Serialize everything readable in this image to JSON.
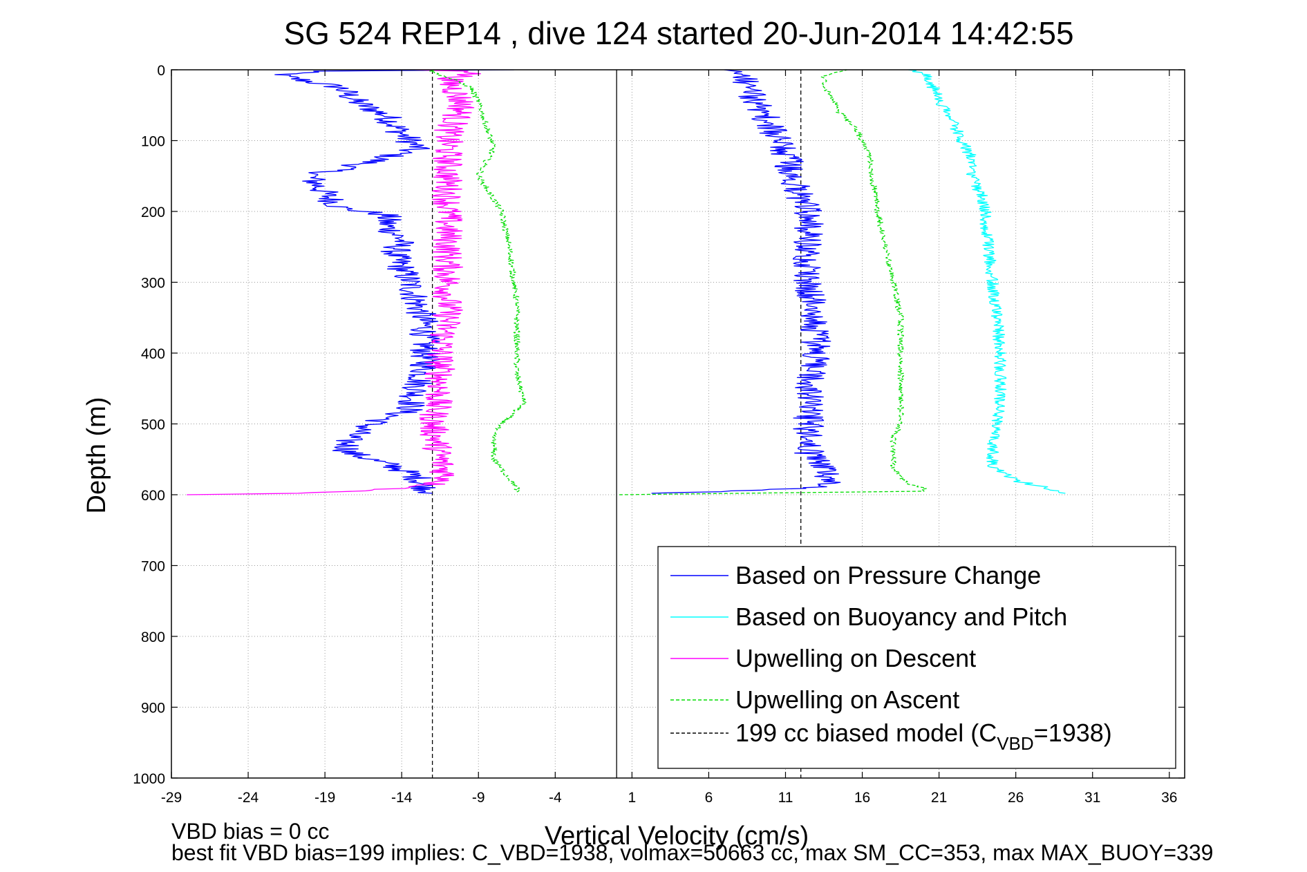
{
  "chart_data": {
    "type": "line",
    "title": "SG 524   REP14  , dive 124 started 20-Jun-2014 14:42:55",
    "xlabel": "Vertical Velocity (cm/s)",
    "ylabel": "Depth (m)",
    "xlim": [
      -29,
      37
    ],
    "ylim": [
      0,
      1000
    ],
    "y_reversed": true,
    "grid": true,
    "xticks": [
      -29,
      -24,
      -19,
      -14,
      -9,
      -4,
      1,
      6,
      11,
      16,
      21,
      26,
      31,
      36
    ],
    "yticks": [
      0,
      100,
      200,
      300,
      400,
      500,
      600,
      700,
      800,
      900,
      1000
    ],
    "legend_position": "bottom-right",
    "vertical_lines": [
      {
        "x": -12,
        "style": "dashed",
        "color": "#000000"
      },
      {
        "x": 0,
        "style": "solid",
        "color": "#000000"
      },
      {
        "x": 12,
        "style": "dashed",
        "color": "#000000"
      }
    ],
    "series": [
      {
        "name": "Based on Pressure Change",
        "color": "#0000ff",
        "style": "solid",
        "noise": 1.0,
        "descent": {
          "depth": [
            0,
            2,
            8,
            25,
            45,
            65,
            90,
            110,
            130,
            150,
            175,
            195,
            205,
            220,
            240,
            260,
            280,
            300,
            330,
            360,
            390,
            420,
            450,
            480,
            500,
            520,
            540,
            560,
            575,
            590,
            598
          ],
          "x": [
            -7,
            -20,
            -22,
            -18,
            -17,
            -15,
            -14,
            -13,
            -16,
            -20,
            -19,
            -18,
            -15,
            -15,
            -14,
            -14.5,
            -14,
            -13.5,
            -13,
            -12.5,
            -12.5,
            -12.5,
            -13,
            -13.5,
            -16,
            -17.5,
            -17.5,
            -14.5,
            -13,
            -12.5,
            -12
          ]
        },
        "ascent": {
          "depth": [
            598,
            590,
            580,
            560,
            540,
            520,
            500,
            450,
            400,
            350,
            300,
            260,
            220,
            200,
            180,
            150,
            120,
            100,
            80,
            60,
            40,
            20,
            5,
            0
          ],
          "x": [
            3,
            13,
            14,
            13.5,
            12.5,
            12.5,
            12.5,
            12.5,
            13,
            13,
            12.5,
            12.5,
            12.5,
            12.5,
            12,
            11.5,
            11,
            10.5,
            10,
            9.5,
            9,
            8.5,
            8,
            7
          ]
        }
      },
      {
        "name": "Based on Buoyancy and Pitch",
        "color": "#00ffff",
        "style": "solid",
        "noise": 0.4,
        "descent": {
          "depth": [],
          "x": []
        },
        "ascent": {
          "depth": [
            598,
            590,
            580,
            560,
            540,
            520,
            500,
            450,
            400,
            350,
            300,
            250,
            220,
            200,
            180,
            150,
            120,
            100,
            80,
            60,
            40,
            20,
            5,
            0
          ],
          "x": [
            29,
            28,
            26,
            24.5,
            24.5,
            24.5,
            24.8,
            25,
            25,
            24.8,
            24.5,
            24.2,
            24,
            24,
            23.8,
            23.2,
            23,
            22.5,
            22,
            21.5,
            21,
            20.5,
            20,
            19
          ]
        }
      },
      {
        "name": "Upwelling on Descent",
        "color": "#ff00ff",
        "style": "solid",
        "noise": 1.0,
        "descent": {
          "depth": [
            0,
            2,
            8,
            15,
            30,
            50,
            70,
            90,
            110,
            130,
            160,
            200,
            250,
            300,
            350,
            400,
            450,
            500,
            550,
            580,
            590,
            598,
            600
          ],
          "x": [
            -13,
            -9,
            -10,
            -11,
            -10.5,
            -10,
            -10.5,
            -11,
            -11,
            -11,
            -11,
            -11,
            -11,
            -11,
            -11,
            -11.5,
            -11.5,
            -12,
            -11.5,
            -11,
            -13,
            -20,
            -28
          ]
        },
        "ascent": {
          "depth": [],
          "x": []
        }
      },
      {
        "name": "Upwelling on Ascent",
        "color": "#00dd00",
        "style": "dashed",
        "noise": 0.2,
        "descent": {
          "depth": [
            0,
            3,
            15,
            25,
            45,
            80,
            110,
            150,
            200,
            250,
            330,
            400,
            430,
            470,
            510,
            550,
            590,
            596
          ],
          "x": [
            -12,
            -12,
            -10.5,
            -9.5,
            -9,
            -8.5,
            -8,
            -9,
            -7.5,
            -7,
            -6.5,
            -6.5,
            -6.5,
            -6,
            -8,
            -8,
            -6.5,
            -6.5
          ]
        },
        "ascent": {
          "depth": [
            600,
            595,
            590,
            585,
            575,
            560,
            540,
            520,
            500,
            450,
            400,
            350,
            300,
            250,
            200,
            180,
            150,
            120,
            100,
            80,
            60,
            40,
            20,
            10,
            5,
            0
          ],
          "x": [
            0,
            20,
            20,
            19,
            18.5,
            18,
            18,
            18,
            18.5,
            18.5,
            18.5,
            18.5,
            18,
            17.5,
            17,
            17,
            16.5,
            16.5,
            16,
            15.5,
            14.5,
            14,
            13.5,
            13.5,
            14,
            15
          ]
        }
      },
      {
        "name": "199 cc biased model (C",
        "name_subscript": "VBD",
        "name_suffix": "=1938)",
        "color": "#000000",
        "style": "dashed",
        "descent": {
          "depth": [],
          "x": []
        },
        "ascent": {
          "depth": [],
          "x": []
        }
      }
    ]
  },
  "footer": {
    "line1": "VBD bias = 0 cc",
    "line2": "best fit VBD bias=199 implies: C_VBD=1938, volmax=50663 cc, max SM_CC=353, max MAX_BUOY=339"
  }
}
